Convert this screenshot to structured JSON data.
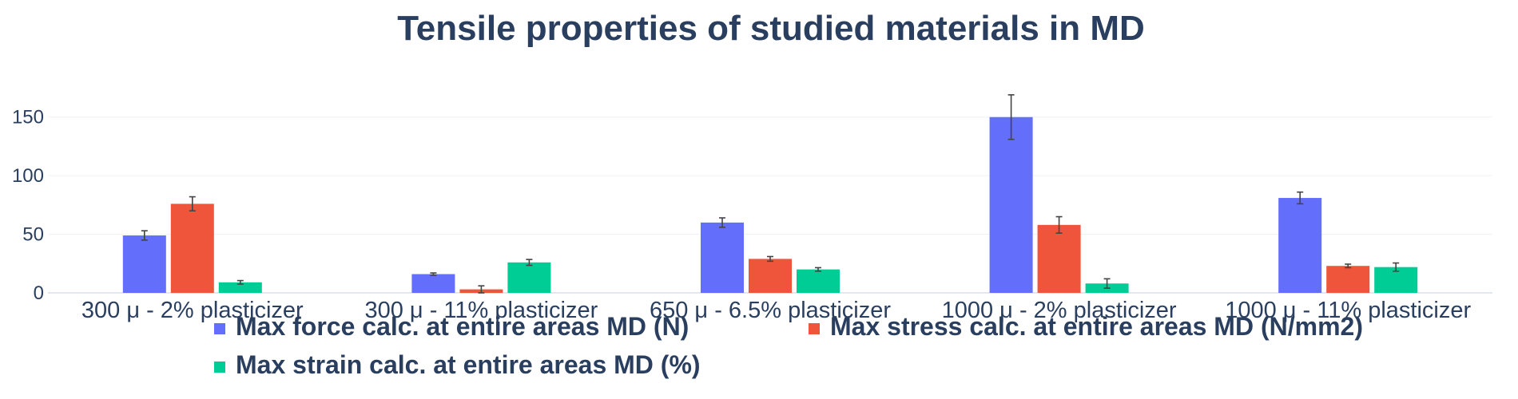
{
  "chart_data": {
    "type": "bar",
    "title": "Tensile properties of studied materials in MD",
    "xlabel": "",
    "ylabel": "",
    "categories": [
      "300 μ - 2% plasticizer",
      "300 μ - 11% plasticizer",
      "650 μ - 6.5% plasticizer",
      "1000 μ - 2% plasticizer",
      "1000 μ - 11% plasticizer"
    ],
    "ylim": [
      0,
      190
    ],
    "yticks": [
      0,
      50,
      100,
      150
    ],
    "grid": true,
    "legend_position": "bottom",
    "series": [
      {
        "name": "Max force calc. at entire areas MD (N)",
        "color": "#636efa",
        "values": [
          49,
          16,
          60,
          150,
          81
        ],
        "errors": [
          4,
          1,
          4,
          19,
          5
        ]
      },
      {
        "name": "Max stress calc. at entire areas MD (N/mm2)",
        "color": "#ef553b",
        "values": [
          76,
          3,
          29,
          58,
          23
        ],
        "errors": [
          6,
          3,
          2,
          7,
          1.5
        ]
      },
      {
        "name": "Max strain calc. at entire areas MD (%)",
        "color": "#00cc96",
        "values": [
          9,
          26,
          20,
          8,
          22
        ],
        "errors": [
          1.5,
          2.5,
          1.5,
          4,
          3.5
        ]
      }
    ]
  }
}
